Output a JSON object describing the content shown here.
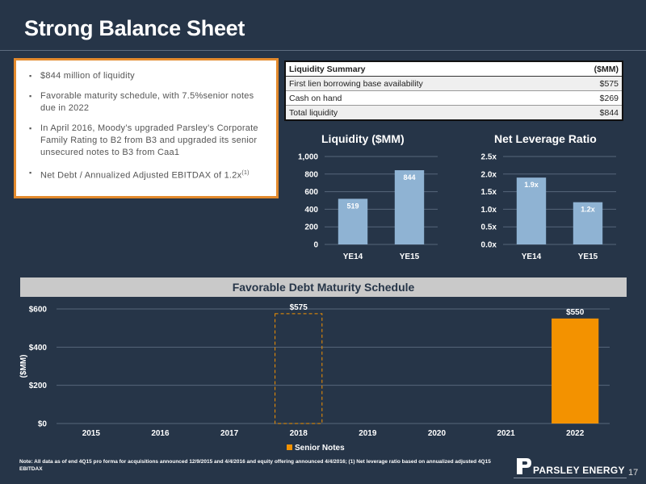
{
  "page": {
    "title": "Strong Balance Sheet",
    "page_number": "17"
  },
  "bullets": [
    "$844 million of liquidity",
    "Favorable maturity schedule, with 7.5%senior notes due in 2022",
    "In April 2016, Moody’s upgraded Parsley’s Corporate Family Rating to B2 from B3 and upgraded its senior unsecured notes to B3 from Caa1",
    "Net Debt / Annualized Adjusted EBITDAX of 1.2x"
  ],
  "bullet_footnote_marker": "(1)",
  "liquidity_table": {
    "header": [
      "Liquidity Summary",
      "($MM)"
    ],
    "rows": [
      [
        "First lien borrowing base availability",
        "$575"
      ],
      [
        "Cash on hand",
        "$269"
      ],
      [
        "Total liquidity",
        "$844"
      ]
    ]
  },
  "chart_data": [
    {
      "type": "bar",
      "title": "Liquidity ($MM)",
      "categories": [
        "YE14",
        "YE15"
      ],
      "values": [
        519,
        844
      ],
      "data_labels": [
        "519",
        "844"
      ],
      "ylim": [
        0,
        1000
      ],
      "yticks": [
        "0",
        "200",
        "400",
        "600",
        "800",
        "1,000"
      ],
      "grid": true,
      "color": "#8fb3d3"
    },
    {
      "type": "bar",
      "title": "Net Leverage Ratio",
      "categories": [
        "YE14",
        "YE15"
      ],
      "values": [
        1.9,
        1.2
      ],
      "data_labels": [
        "1.9x",
        "1.2x"
      ],
      "ylim": [
        0,
        2.5
      ],
      "yticks": [
        "0.0x",
        "0.5x",
        "1.0x",
        "1.5x",
        "2.0x",
        "2.5x"
      ],
      "grid": true,
      "color": "#8fb3d3"
    },
    {
      "type": "bar",
      "title": "Favorable Debt Maturity Schedule",
      "ylabel": "($MM)",
      "categories": [
        "2015",
        "2016",
        "2017",
        "2018",
        "2019",
        "2020",
        "2021",
        "2022"
      ],
      "series": [
        {
          "name": "Senior Notes",
          "values": [
            0,
            0,
            0,
            0,
            0,
            0,
            0,
            550
          ]
        }
      ],
      "annotations": [
        {
          "category": "2018",
          "value": 575,
          "label": "$575",
          "style": "dashed-outline"
        },
        {
          "category": "2022",
          "value": 550,
          "label": "$550"
        }
      ],
      "ylim": [
        0,
        600
      ],
      "yticks": [
        "$0",
        "$200",
        "$400",
        "$600"
      ],
      "grid": true,
      "legend": "bottom",
      "color": "#f39200"
    }
  ],
  "footnote": "Note: All data as of end 4Q15 pro forma for acquisitions announced 12/9/2015 and 4/4/2016 and equity offering announced 4/4/2016; (1) Net leverage ratio based on annualized adjusted 4Q15 EBITDAX",
  "logo": {
    "text": "PARSLEY ENERGY"
  }
}
